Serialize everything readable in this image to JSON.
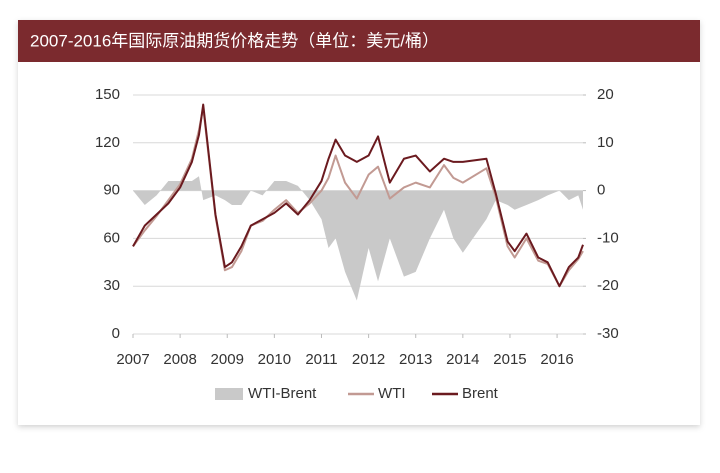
{
  "chart_data": {
    "type": "line",
    "title": "2007-2016年国际原油期货价格走势（单位：美元/桶）",
    "x": [
      2007.0,
      2007.25,
      2007.5,
      2007.75,
      2008.0,
      2008.25,
      2008.4,
      2008.49,
      2008.75,
      2008.95,
      2009.1,
      2009.3,
      2009.5,
      2009.75,
      2010.0,
      2010.25,
      2010.5,
      2010.75,
      2011.0,
      2011.15,
      2011.3,
      2011.5,
      2011.75,
      2012.0,
      2012.2,
      2012.45,
      2012.75,
      2013.0,
      2013.3,
      2013.6,
      2013.8,
      2014.0,
      2014.5,
      2014.7,
      2014.95,
      2015.1,
      2015.35,
      2015.6,
      2015.8,
      2016.05,
      2016.25,
      2016.45,
      2016.55
    ],
    "xlim": [
      2007,
      2016.55
    ],
    "xticks": [
      2007,
      2008,
      2009,
      2010,
      2011,
      2012,
      2013,
      2014,
      2015,
      2016
    ],
    "ylim": [
      0,
      150
    ],
    "yticks": [
      0,
      30,
      60,
      90,
      120,
      150
    ],
    "y2lim": [
      -30,
      20
    ],
    "y2ticks": [
      -30,
      -20,
      -10,
      0,
      10,
      20
    ],
    "grid": true,
    "legend": "bottom",
    "series": [
      {
        "name": "WTI-Brent",
        "type": "area",
        "axis": "y2",
        "color": "#c9c9c9",
        "values": [
          0,
          -3,
          -1,
          2,
          2,
          2,
          3,
          -2,
          -1,
          -2,
          -3,
          -3,
          0,
          -1,
          2,
          2,
          1,
          -2,
          -6,
          -12,
          -10,
          -17,
          -23,
          -12,
          -19,
          -10,
          -18,
          -17,
          -10,
          -4,
          -10,
          -13,
          -6,
          -2,
          -3,
          -4,
          -3,
          -2,
          -1,
          0,
          -2,
          -1,
          -4
        ]
      },
      {
        "name": "WTI",
        "type": "line",
        "color": "#c29a93",
        "values": [
          55,
          65,
          74,
          84,
          94,
          110,
          128,
          142,
          74,
          40,
          42,
          52,
          68,
          71,
          78,
          84,
          76,
          82,
          90,
          98,
          112,
          95,
          85,
          100,
          105,
          85,
          92,
          95,
          92,
          106,
          98,
          95,
          104,
          86,
          55,
          48,
          60,
          46,
          44,
          30,
          40,
          47,
          52
        ]
      },
      {
        "name": "Brent",
        "type": "line",
        "color": "#6b1a1f",
        "values": [
          55,
          68,
          75,
          82,
          92,
          108,
          125,
          144,
          75,
          42,
          45,
          55,
          68,
          72,
          76,
          82,
          75,
          84,
          96,
          110,
          122,
          112,
          108,
          112,
          124,
          95,
          110,
          112,
          102,
          110,
          108,
          108,
          110,
          88,
          58,
          52,
          63,
          48,
          45,
          30,
          42,
          48,
          56
        ]
      }
    ]
  }
}
